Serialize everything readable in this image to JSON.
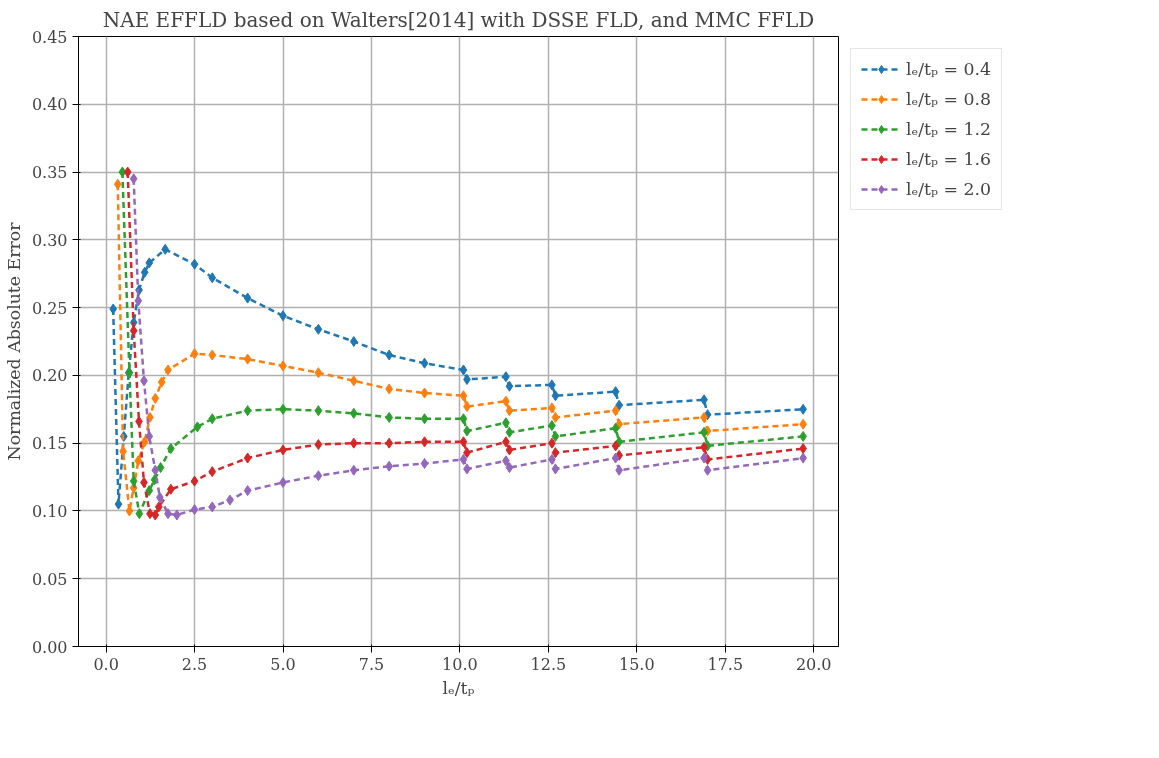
{
  "chart_data": {
    "type": "line",
    "title": "NAE EFFLD based on Walters[2014] with DSSE FLD, and MMC FFLD",
    "xlabel": "lₑ/tₚ",
    "ylabel": "Normalized Absolute Error",
    "xlim": [
      -0.78,
      20.7
    ],
    "ylim": [
      0,
      0.45
    ],
    "xticks": [
      {
        "value": 0,
        "label": "0.0"
      },
      2.5,
      {
        "value": 5,
        "label": "5.0"
      },
      7.5,
      {
        "value": 10,
        "label": "10.0"
      },
      12.5,
      {
        "value": 15,
        "label": "15.0"
      },
      17.5,
      {
        "value": 20,
        "label": "20.0"
      }
    ],
    "yticks": [
      {
        "value": 0,
        "label": "0.00"
      },
      {
        "value": 0.05,
        "label": "0.05"
      },
      {
        "value": 0.1,
        "label": "0.10"
      },
      {
        "value": 0.15,
        "label": "0.15"
      },
      {
        "value": 0.2,
        "label": "0.20"
      },
      {
        "value": 0.25,
        "label": "0.25"
      },
      {
        "value": 0.3,
        "label": "0.30"
      },
      {
        "value": 0.35,
        "label": "0.35"
      },
      {
        "value": 0.4,
        "label": "0.40"
      },
      {
        "value": 0.45,
        "label": "0.45"
      }
    ],
    "grid": true,
    "legend": "top right",
    "marker": "diamond",
    "line_style": "dashed",
    "series": [
      {
        "name": "lₑ/tₚ = 0.4",
        "color": "#1f77b4",
        "x": [
          0.2,
          0.35,
          0.5,
          0.64,
          0.78,
          0.93,
          1.09,
          1.22,
          1.67,
          2.5,
          3.0,
          4.0,
          5.0,
          6.0,
          7.0,
          8.0,
          9.0,
          10.1,
          10.2,
          11.3,
          11.4,
          12.6,
          12.7,
          14.4,
          14.5,
          16.9,
          17.0,
          19.7
        ],
        "values": [
          0.249,
          0.105,
          0.155,
          0.202,
          0.239,
          0.263,
          0.276,
          0.283,
          0.293,
          0.282,
          0.272,
          0.257,
          0.244,
          0.234,
          0.225,
          0.215,
          0.209,
          0.204,
          0.197,
          0.199,
          0.192,
          0.193,
          0.185,
          0.188,
          0.178,
          0.182,
          0.171,
          0.175
        ]
      },
      {
        "name": "lₑ/tₚ = 0.8",
        "color": "#ff7f0e",
        "x": [
          0.33,
          0.48,
          0.66,
          0.78,
          0.91,
          1.09,
          1.24,
          1.39,
          1.57,
          1.75,
          2.5,
          3.0,
          4.0,
          5.0,
          6.0,
          7.0,
          8.0,
          9.0,
          10.1,
          10.2,
          11.3,
          11.4,
          12.6,
          12.7,
          14.4,
          14.5,
          16.9,
          17.0,
          19.7
        ],
        "values": [
          0.341,
          0.144,
          0.1,
          0.117,
          0.137,
          0.151,
          0.169,
          0.183,
          0.195,
          0.204,
          0.216,
          0.215,
          0.212,
          0.207,
          0.202,
          0.196,
          0.19,
          0.187,
          0.185,
          0.177,
          0.181,
          0.174,
          0.176,
          0.169,
          0.174,
          0.164,
          0.169,
          0.159,
          0.164
        ]
      },
      {
        "name": "lₑ/tₚ = 1.2",
        "color": "#2ca02c",
        "x": [
          0.46,
          0.66,
          0.78,
          0.94,
          1.22,
          1.37,
          1.54,
          1.83,
          2.58,
          3.0,
          4.0,
          5.0,
          6.0,
          7.0,
          8.0,
          9.0,
          10.1,
          10.2,
          11.3,
          11.4,
          12.6,
          12.7,
          14.4,
          14.5,
          16.9,
          17.0,
          19.7
        ],
        "values": [
          0.35,
          0.202,
          0.122,
          0.098,
          0.115,
          0.123,
          0.132,
          0.146,
          0.162,
          0.168,
          0.174,
          0.175,
          0.174,
          0.172,
          0.169,
          0.168,
          0.168,
          0.159,
          0.165,
          0.158,
          0.163,
          0.155,
          0.161,
          0.151,
          0.158,
          0.148,
          0.155
        ]
      },
      {
        "name": "lₑ/tₚ = 1.6",
        "color": "#d62728",
        "x": [
          0.61,
          0.78,
          0.93,
          1.07,
          1.24,
          1.39,
          1.49,
          1.83,
          2.5,
          3.0,
          4.0,
          5.0,
          6.0,
          7.0,
          8.0,
          9.0,
          10.1,
          10.2,
          11.3,
          11.4,
          12.6,
          12.7,
          14.4,
          14.5,
          16.9,
          17.0,
          19.7
        ],
        "values": [
          0.35,
          0.233,
          0.166,
          0.121,
          0.098,
          0.097,
          0.103,
          0.116,
          0.122,
          0.129,
          0.139,
          0.145,
          0.149,
          0.15,
          0.15,
          0.151,
          0.151,
          0.143,
          0.151,
          0.145,
          0.15,
          0.143,
          0.148,
          0.141,
          0.147,
          0.138,
          0.146
        ]
      },
      {
        "name": "lₑ/tₚ = 2.0",
        "color": "#9467bd",
        "x": [
          0.78,
          0.91,
          1.07,
          1.22,
          1.39,
          1.52,
          1.75,
          2.0,
          2.5,
          3.0,
          3.5,
          4.0,
          5.0,
          6.0,
          7.0,
          8.0,
          9.0,
          10.1,
          10.2,
          11.3,
          11.4,
          12.6,
          12.7,
          14.4,
          14.5,
          16.9,
          17.0,
          19.7
        ],
        "values": [
          0.345,
          0.255,
          0.196,
          0.155,
          0.13,
          0.11,
          0.098,
          0.097,
          0.101,
          0.103,
          0.108,
          0.115,
          0.121,
          0.126,
          0.13,
          0.133,
          0.135,
          0.138,
          0.131,
          0.137,
          0.132,
          0.138,
          0.131,
          0.139,
          0.13,
          0.139,
          0.13,
          0.139
        ]
      }
    ]
  }
}
